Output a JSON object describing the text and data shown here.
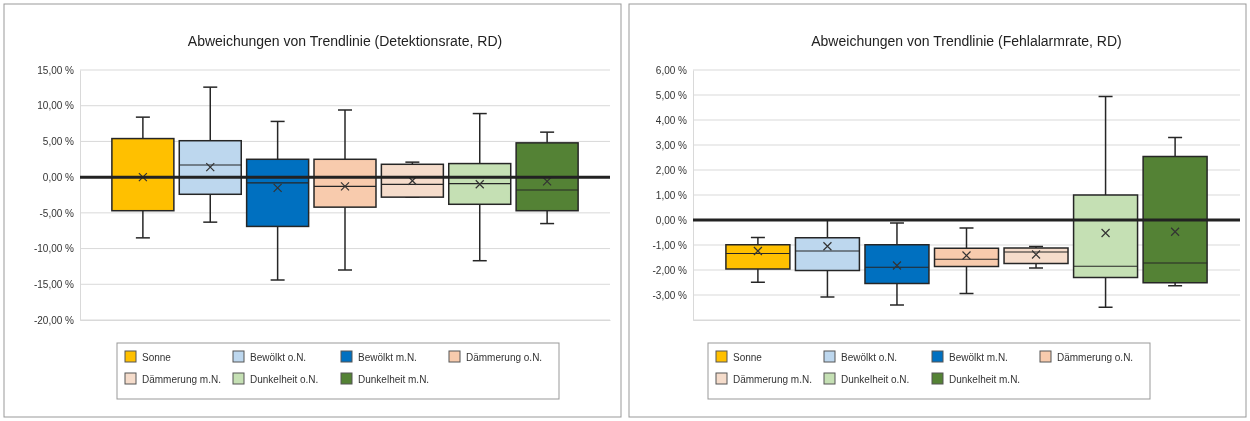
{
  "chart_data": [
    {
      "type": "box",
      "title": "Abweichungen von Trendlinie (Detektionsrate, RD)",
      "categories": [
        null
      ],
      "ylim": [
        -20,
        15
      ],
      "yticks": [
        {
          "value": 15,
          "label": "15,00 %"
        },
        {
          "value": 10,
          "label": "10,00 %"
        },
        {
          "value": 5,
          "label": "5,00 %"
        },
        {
          "value": 0,
          "label": "0,00 %"
        },
        {
          "value": -5,
          "label": "-5,00 %"
        },
        {
          "value": -10,
          "label": "-10,00 %"
        },
        {
          "value": -15,
          "label": "-15,00 %"
        },
        {
          "value": -20,
          "label": "-20,00 %"
        }
      ],
      "grid": "y",
      "legend": "bottom",
      "tick_labels": "y",
      "ref_lines": [
        {
          "axis": "y",
          "value": 0,
          "label": null,
          "color": "#222222"
        }
      ],
      "series": [
        {
          "name": "Sonne",
          "color": "#ffc000",
          "boxes": [
            {
              "low": -8.5,
              "q1": -4.7,
              "median": 0,
              "q3": 5.4,
              "high": 8.4,
              "mean": 0
            }
          ]
        },
        {
          "name": "Bewölkt o.N.",
          "color": "#bdd7ee",
          "boxes": [
            {
              "low": -6.3,
              "q1": -2.4,
              "median": 1.7,
              "q3": 5.1,
              "high": 12.6,
              "mean": 1.4
            }
          ]
        },
        {
          "name": "Bewölkt m.N.",
          "color": "#0070c0",
          "boxes": [
            {
              "low": -14.4,
              "q1": -6.9,
              "median": -0.8,
              "q3": 2.5,
              "high": 7.8,
              "mean": -1.5
            }
          ]
        },
        {
          "name": "Dämmerung o.N.",
          "color": "#f8cbad",
          "boxes": [
            {
              "low": -13.0,
              "q1": -4.2,
              "median": -1.3,
              "q3": 2.5,
              "high": 9.4,
              "mean": -1.3
            }
          ]
        },
        {
          "name": "Dämmerung m.N.",
          "color": "#f5dccb",
          "boxes": [
            {
              "low": -2.8,
              "q1": -2.8,
              "median": -1.0,
              "q3": 1.8,
              "high": 2.1,
              "mean": -0.5
            }
          ]
        },
        {
          "name": "Dunkelheit o.N.",
          "color": "#c5e0b4",
          "boxes": [
            {
              "low": -11.7,
              "q1": -3.8,
              "median": -0.9,
              "q3": 1.9,
              "high": 8.9,
              "mean": -1.0
            }
          ]
        },
        {
          "name": "Dunkelheit m.N.",
          "color": "#548235",
          "boxes": [
            {
              "low": -6.5,
              "q1": -4.7,
              "median": -1.8,
              "q3": 4.8,
              "high": 6.3,
              "mean": -0.6
            }
          ]
        }
      ]
    },
    {
      "type": "box",
      "title": "Abweichungen von Trendlinie (Fehlalarmrate, RD)",
      "categories": [
        null
      ],
      "ylim": [
        -4,
        6
      ],
      "yticks": [
        {
          "value": 6,
          "label": "6,00 %"
        },
        {
          "value": 5,
          "label": "5,00 %"
        },
        {
          "value": 4,
          "label": "4,00 %"
        },
        {
          "value": 3,
          "label": "3,00 %"
        },
        {
          "value": 2,
          "label": "2,00 %"
        },
        {
          "value": 1,
          "label": "1,00 %"
        },
        {
          "value": 0,
          "label": "0,00 %"
        },
        {
          "value": -1,
          "label": "-1,00 %"
        },
        {
          "value": -2,
          "label": "-2,00 %"
        },
        {
          "value": -3,
          "label": "-3,00 %"
        },
        {
          "value": -4,
          "label": null
        }
      ],
      "grid": "y",
      "legend": "bottom",
      "tick_labels": "y",
      "ref_lines": [
        {
          "axis": "y",
          "value": 0,
          "label": null,
          "color": "#222222"
        }
      ],
      "series": [
        {
          "name": "Sonne",
          "color": "#ffc000",
          "boxes": [
            {
              "low": -2.49,
              "q1": -1.96,
              "median": -1.34,
              "q3": -0.99,
              "high": -0.7,
              "mean": -1.24
            }
          ]
        },
        {
          "name": "Bewölkt o.N.",
          "color": "#bdd7ee",
          "boxes": [
            {
              "low": -3.08,
              "q1": -2.02,
              "median": -1.24,
              "q3": -0.71,
              "high": 0,
              "mean": -1.05
            }
          ]
        },
        {
          "name": "Bewölkt m.N.",
          "color": "#0070c0",
          "boxes": [
            {
              "low": -3.4,
              "q1": -2.54,
              "median": -1.89,
              "q3": -0.99,
              "high": -0.12,
              "mean": -1.82
            }
          ]
        },
        {
          "name": "Dämmerung o.N.",
          "color": "#f8cbad",
          "boxes": [
            {
              "low": -2.94,
              "q1": -1.86,
              "median": -1.57,
              "q3": -1.13,
              "high": -0.32,
              "mean": -1.42
            }
          ]
        },
        {
          "name": "Dämmerung m.N.",
          "color": "#f5dccb",
          "boxes": [
            {
              "low": -1.92,
              "q1": -1.74,
              "median": -1.28,
              "q3": -1.12,
              "high": -1.06,
              "mean": -1.38
            }
          ]
        },
        {
          "name": "Dunkelheit o.N.",
          "color": "#c5e0b4",
          "boxes": [
            {
              "low": -3.49,
              "q1": -2.3,
              "median": -1.85,
              "q3": 1.0,
              "high": 4.94,
              "mean": -0.52
            }
          ]
        },
        {
          "name": "Dunkelheit m.N.",
          "color": "#548235",
          "boxes": [
            {
              "low": -2.63,
              "q1": -2.51,
              "median": -1.72,
              "q3": 2.54,
              "high": 3.3,
              "mean": -0.47
            }
          ]
        }
      ]
    }
  ]
}
